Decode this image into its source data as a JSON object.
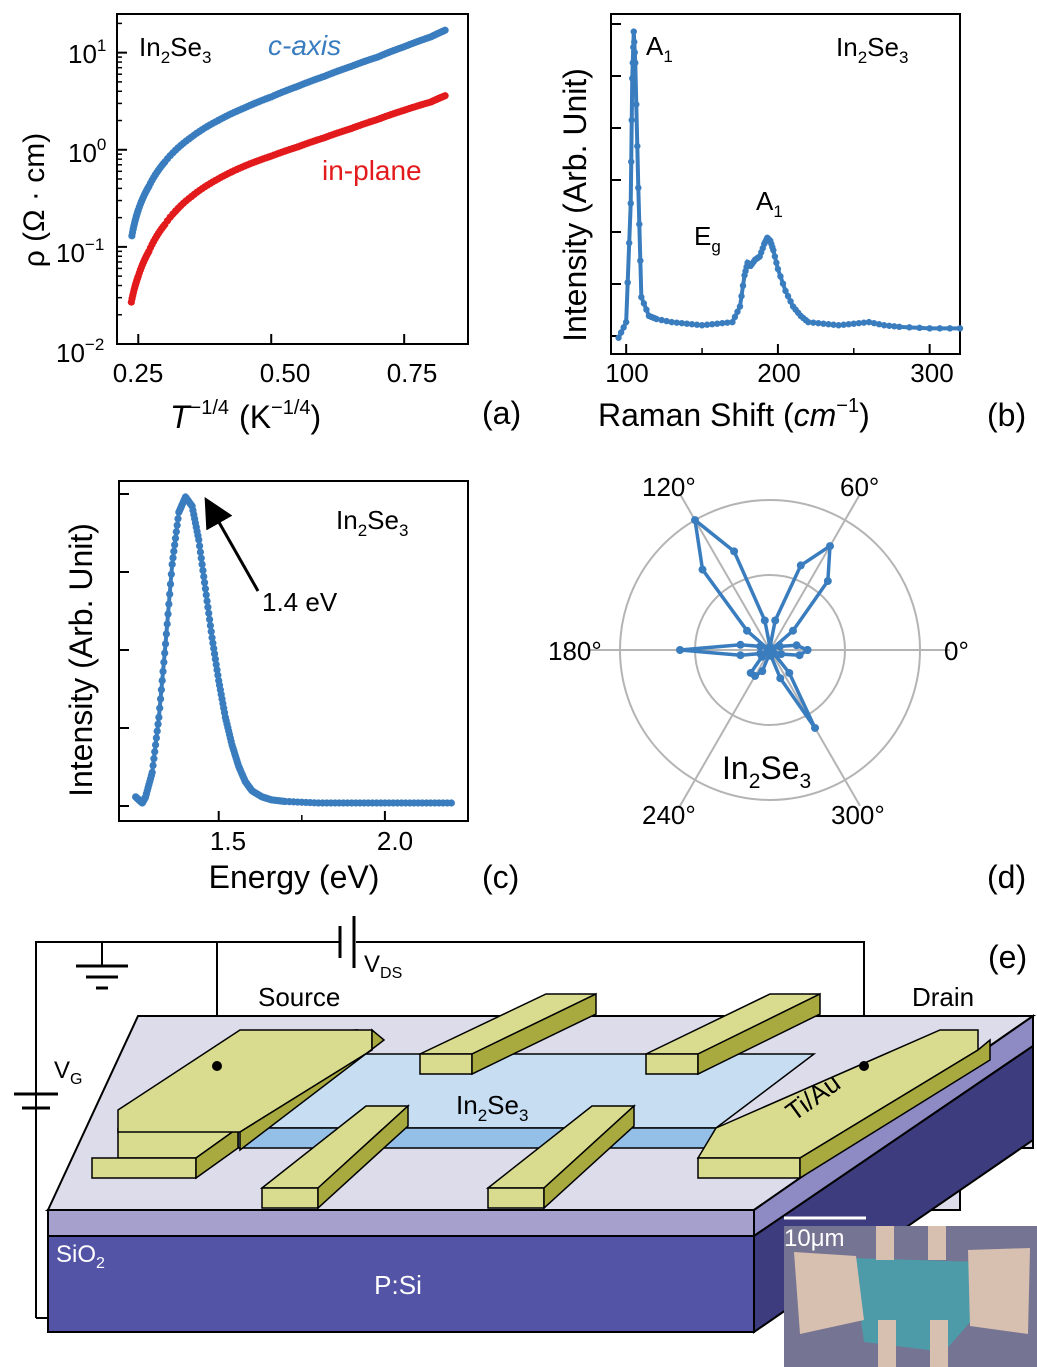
{
  "colors": {
    "blue": "#3a7dbf",
    "red": "#e31a1c",
    "gold_top": "#d9dc8f",
    "gold_side": "#a8aa3f",
    "flake_top": "#c6ddf2",
    "flake_side": "#94c0e8",
    "sio2_top": "#dcdcea",
    "sio2_front": "#a5a1cc",
    "si_front": "#5454a6",
    "si_side": "#3c3c7e",
    "grid": "#b4b4b4"
  },
  "panel_labels": {
    "a": "(a)",
    "b": "(b)",
    "c": "(c)",
    "d": "(d)",
    "e": "(e)"
  },
  "panel_a": {
    "ylabel": "ρ (Ω · cm)",
    "xlabel_base": "T",
    "xlabel_exp": "−1/4",
    "xlabel_unit_open": "(K",
    "xlabel_unit_exp": "−1/4",
    "xlabel_unit_close": ")",
    "material": {
      "base1": "In",
      "sub": "2",
      "base2": "Se",
      "sub2": "3"
    },
    "series_labels": {
      "c_axis": "c-axis",
      "in_plane": "in-plane"
    },
    "xticks": [
      "0.25",
      "0.50",
      "0.75"
    ],
    "yticks": [
      {
        "base": "10",
        "exp": "1"
      },
      {
        "base": "10",
        "exp": "0"
      },
      {
        "base": "10",
        "exp": "−1"
      },
      {
        "base": "10",
        "exp": "−2"
      }
    ]
  },
  "panel_b": {
    "ylabel": "Intensity (Arb. Unit)",
    "xlabel": "Raman Shift (",
    "xlabel_unit": "cm",
    "xlabel_exp": "−1",
    "xlabel_close": ")",
    "material": {
      "base1": "In",
      "sub": "2",
      "base2": "Se",
      "sub2": "3"
    },
    "peak_labels": [
      {
        "base": "A",
        "sub": "1"
      },
      {
        "base": "E",
        "sub": "g"
      },
      {
        "base": "A",
        "sub": "1"
      }
    ],
    "xticks": [
      "100",
      "200",
      "300"
    ]
  },
  "panel_c": {
    "ylabel": "Intensity (Arb. Unit)",
    "xlabel": "Energy (eV)",
    "material": {
      "base1": "In",
      "sub": "2",
      "base2": "Se",
      "sub2": "3"
    },
    "annotation": "1.4 eV",
    "xticks": [
      "1.5",
      "2.0"
    ]
  },
  "panel_d": {
    "angle_labels": [
      "0°",
      "60°",
      "120°",
      "180°",
      "240°",
      "300°"
    ],
    "material": {
      "base1": "In",
      "sub": "2",
      "base2": "Se",
      "sub2": "3"
    }
  },
  "panel_e": {
    "source": "Source",
    "drain": "Drain",
    "vds": {
      "base": "V",
      "sub": "DS"
    },
    "vg": {
      "base": "V",
      "sub": "G"
    },
    "electrode": "Ti/Au",
    "flake": {
      "base1": "In",
      "sub": "2",
      "base2": "Se",
      "sub2": "3"
    },
    "oxide": {
      "base": "SiO",
      "sub": "2"
    },
    "substrate": "P:Si",
    "scale_bar": "10μm"
  },
  "chart_data": [
    {
      "panel": "a",
      "type": "scatter",
      "title": "",
      "xlabel": "T^(−1/4) (K^(−1/4))",
      "ylabel": "ρ (Ω · cm)",
      "xlim": [
        0.21,
        0.87
      ],
      "ylim": [
        0.01,
        25
      ],
      "yscale": "log",
      "grid": false,
      "series": [
        {
          "name": "c-axis",
          "color": "#3a7dbf",
          "x": [
            0.238,
            0.25,
            0.27,
            0.3,
            0.35,
            0.4,
            0.45,
            0.5,
            0.55,
            0.6,
            0.65,
            0.7,
            0.75,
            0.8,
            0.827
          ],
          "y": [
            0.13,
            0.24,
            0.42,
            0.75,
            1.35,
            2.0,
            2.7,
            3.5,
            4.5,
            5.7,
            7.2,
            9.0,
            11.5,
            14.5,
            17
          ]
        },
        {
          "name": "in-plane",
          "color": "#e31a1c",
          "x": [
            0.237,
            0.25,
            0.27,
            0.3,
            0.35,
            0.4,
            0.45,
            0.5,
            0.55,
            0.6,
            0.65,
            0.7,
            0.75,
            0.8,
            0.827
          ],
          "y": [
            0.027,
            0.05,
            0.09,
            0.17,
            0.33,
            0.5,
            0.68,
            0.86,
            1.07,
            1.33,
            1.65,
            2.05,
            2.55,
            3.1,
            3.6
          ]
        }
      ]
    },
    {
      "panel": "b",
      "type": "line",
      "title": "",
      "xlabel": "Raman Shift (cm−1)",
      "ylabel": "Intensity (Arb. Unit)",
      "xlim": [
        90,
        320
      ],
      "ylim": [
        0,
        1.05
      ],
      "grid": false,
      "x": [
        95,
        100,
        103,
        104,
        105,
        106,
        108,
        110,
        115,
        120,
        130,
        140,
        150,
        160,
        170,
        175,
        178,
        180,
        182,
        185,
        188,
        191,
        193,
        195,
        197,
        200,
        205,
        210,
        215,
        220,
        230,
        240,
        250,
        260,
        270,
        280,
        300,
        320
      ],
      "y": [
        0.02,
        0.07,
        0.45,
        0.85,
        1.0,
        0.9,
        0.5,
        0.15,
        0.09,
        0.08,
        0.07,
        0.065,
        0.06,
        0.065,
        0.07,
        0.12,
        0.22,
        0.26,
        0.25,
        0.27,
        0.28,
        0.32,
        0.34,
        0.33,
        0.3,
        0.24,
        0.17,
        0.12,
        0.09,
        0.07,
        0.065,
        0.06,
        0.065,
        0.07,
        0.06,
        0.055,
        0.05,
        0.05
      ]
    },
    {
      "panel": "c",
      "type": "line",
      "title": "",
      "xlabel": "Energy (eV)",
      "ylabel": "Intensity (Arb. Unit)",
      "xlim": [
        1.2,
        2.25
      ],
      "ylim": [
        -0.05,
        1.05
      ],
      "grid": false,
      "x": [
        1.25,
        1.26,
        1.27,
        1.28,
        1.3,
        1.32,
        1.34,
        1.36,
        1.38,
        1.4,
        1.42,
        1.44,
        1.46,
        1.48,
        1.5,
        1.52,
        1.54,
        1.56,
        1.58,
        1.6,
        1.63,
        1.66,
        1.7,
        1.8,
        1.9,
        2.0,
        2.1,
        2.2
      ],
      "y": [
        0.02,
        0.01,
        0.0,
        0.02,
        0.1,
        0.28,
        0.52,
        0.78,
        0.95,
        1.0,
        0.97,
        0.86,
        0.7,
        0.54,
        0.4,
        0.28,
        0.19,
        0.12,
        0.07,
        0.04,
        0.02,
        0.01,
        0.005,
        0.0,
        0.0,
        0.0,
        0.0,
        0.0
      ]
    },
    {
      "panel": "d",
      "type": "polar",
      "title": "",
      "theta_deg": [
        0,
        10,
        20,
        30,
        40,
        50,
        60,
        70,
        80,
        90,
        100,
        110,
        120,
        130,
        140,
        150,
        160,
        170,
        180,
        190,
        200,
        210,
        220,
        230,
        240,
        250,
        260,
        270,
        280,
        290,
        300,
        310,
        320,
        330,
        340,
        350
      ],
      "r": [
        0.25,
        0.18,
        0.07,
        0.02,
        0.2,
        0.6,
        0.8,
        0.6,
        0.2,
        0.02,
        0.2,
        0.7,
        1.0,
        0.7,
        0.2,
        0.02,
        0.07,
        0.2,
        0.6,
        0.2,
        0.07,
        0.02,
        0.07,
        0.2,
        0.2,
        0.15,
        0.03,
        0.01,
        0.04,
        0.2,
        0.6,
        0.2,
        0.03,
        0.02,
        0.08,
        0.2
      ]
    }
  ]
}
